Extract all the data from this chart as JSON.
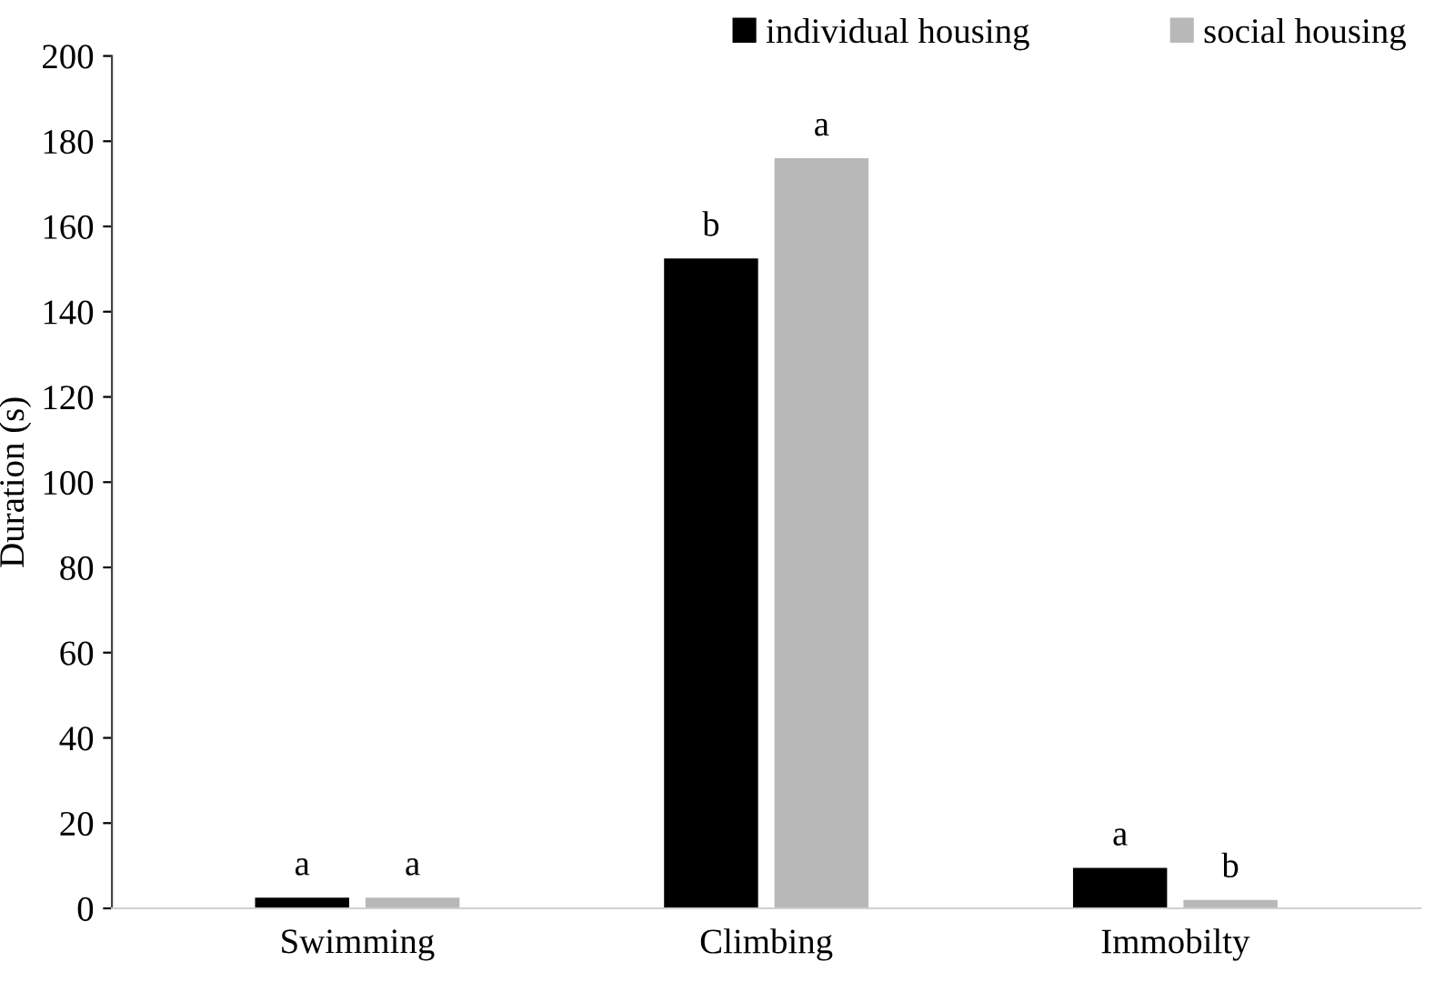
{
  "chart_data": {
    "type": "bar",
    "ylabel": "Duration (s)",
    "categories": [
      "Swimming",
      "Climbing",
      "Immobilty"
    ],
    "series": [
      {
        "name": "individual housing",
        "color": "#000000",
        "values": [
          2.5,
          152.5,
          9.5
        ],
        "value_labels": [
          "a",
          "b",
          "a"
        ]
      },
      {
        "name": "social housing",
        "color": "#b8b8b8",
        "values": [
          2.5,
          176,
          2
        ],
        "value_labels": [
          "a",
          "a",
          "b"
        ]
      }
    ],
    "ylim": [
      0,
      200
    ],
    "yticks": [
      0,
      20,
      40,
      60,
      80,
      100,
      120,
      140,
      160,
      180,
      200
    ],
    "grid": false,
    "legend": "top right"
  }
}
